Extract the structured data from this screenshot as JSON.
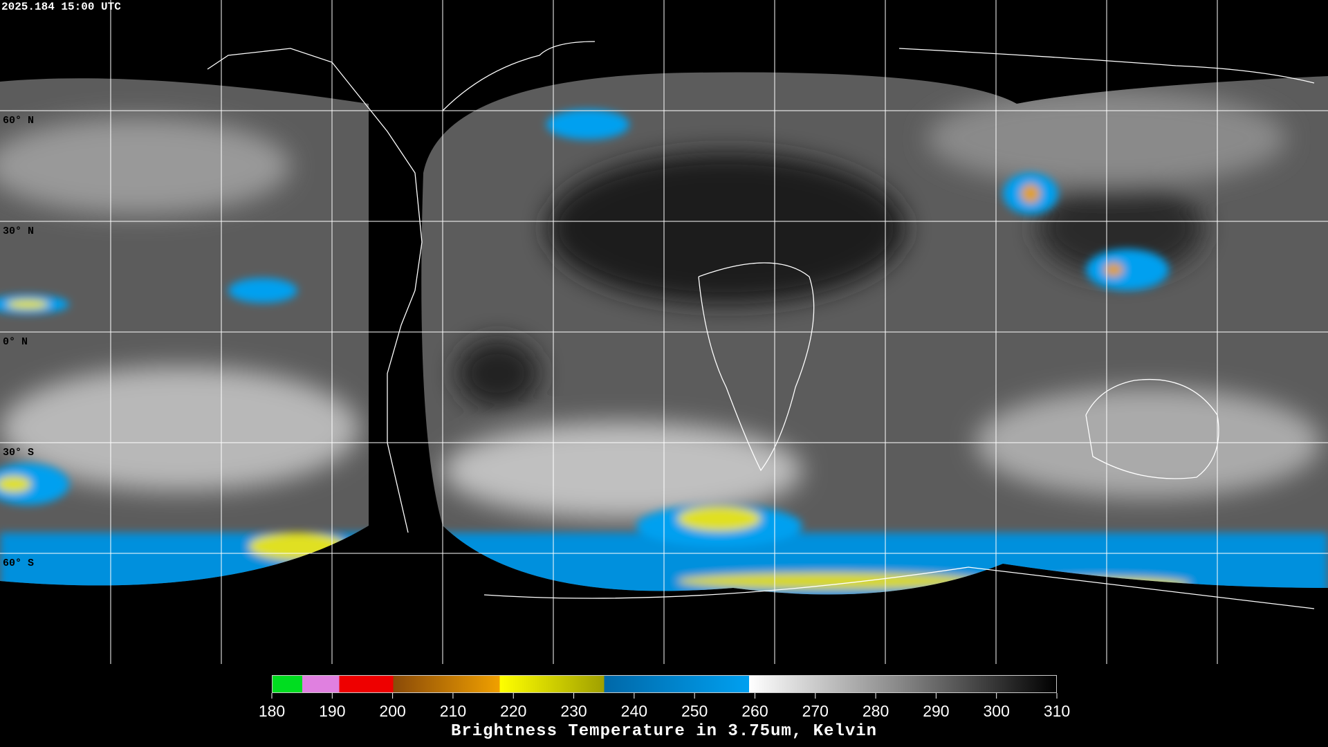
{
  "header": {
    "timestamp": "2025.184 15:00 UTC"
  },
  "map": {
    "latitude_labels": [
      "60° N",
      "30° N",
      "0° N",
      "30° S",
      "60° S"
    ]
  },
  "colorbar": {
    "ticks": [
      180,
      190,
      200,
      210,
      220,
      230,
      240,
      250,
      260,
      270,
      280,
      290,
      300,
      310
    ],
    "title": "Brightness Temperature in 3.75um, Kelvin"
  }
}
